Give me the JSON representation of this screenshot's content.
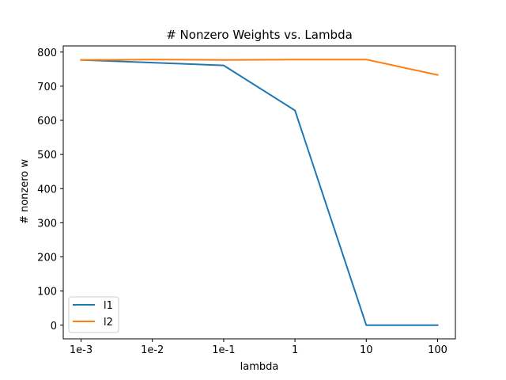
{
  "chart_data": {
    "type": "line",
    "title": "# Nonzero Weights vs. Lambda",
    "xlabel": "lambda",
    "ylabel": "# nonzero w",
    "categories": [
      "1e-3",
      "1e-2",
      "1e-1",
      "1",
      "10",
      "100"
    ],
    "ylim": [
      -40,
      818
    ],
    "yticks": [
      0,
      100,
      200,
      300,
      400,
      500,
      600,
      700,
      800
    ],
    "grid": false,
    "legend_position": "lower-left",
    "series": [
      {
        "name": "l1",
        "color": "#1f77b4",
        "values": [
          777,
          769,
          761,
          629,
          0,
          0
        ]
      },
      {
        "name": "l2",
        "color": "#ff7f0e",
        "values": [
          777,
          778,
          777,
          778,
          778,
          733
        ]
      }
    ]
  }
}
